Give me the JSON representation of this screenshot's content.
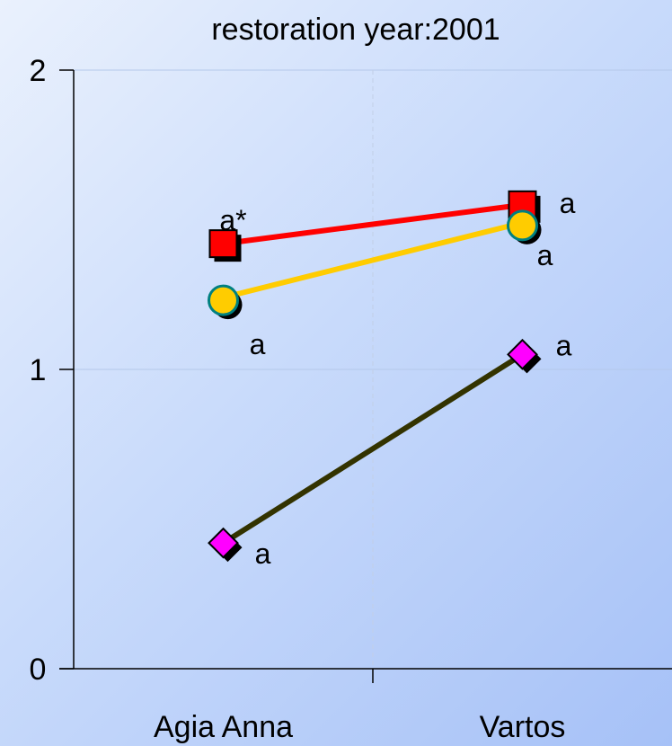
{
  "chart_data": {
    "type": "line",
    "title": "restoration year:2001",
    "categories": [
      "Agia Anna",
      "Vartos"
    ],
    "ylim": [
      0,
      2
    ],
    "yticks": [
      0,
      1,
      2
    ],
    "grid": true,
    "series": [
      {
        "values": [
          1.42,
          1.55
        ],
        "line_color": "#ff0000",
        "marker": "square",
        "marker_fill": "#ff0000",
        "marker_stroke": "#000000",
        "labels": [
          "a*",
          "a"
        ]
      },
      {
        "values": [
          1.24,
          1.49
        ],
        "line_color": "#ffcc00",
        "marker": "circle",
        "marker_fill": "#ffcc00",
        "marker_stroke": "#008080",
        "labels": [
          "a",
          "a"
        ]
      },
      {
        "values": [
          0.42,
          1.05
        ],
        "line_color": "#333300",
        "marker": "diamond",
        "marker_fill": "#ff00ff",
        "marker_stroke": "#000000",
        "labels": [
          "a",
          "a"
        ]
      }
    ]
  }
}
